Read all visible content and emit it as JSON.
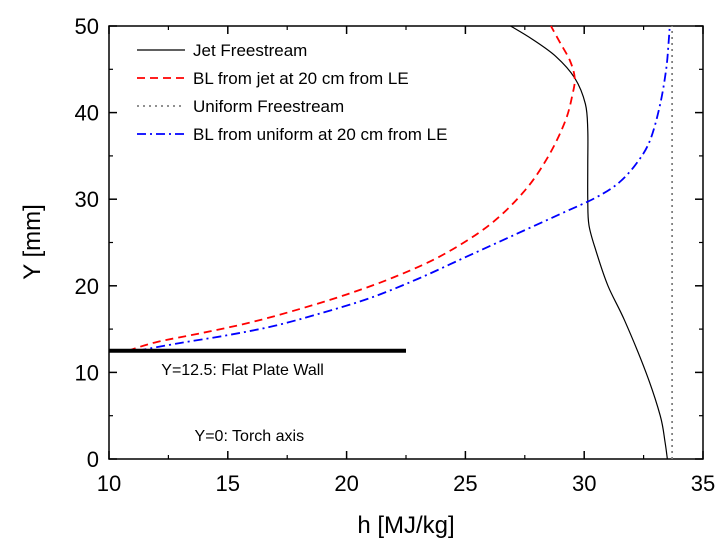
{
  "chart_data": {
    "type": "line",
    "xlabel": "h [MJ/kg]",
    "ylabel": "Y [mm]",
    "xlim": [
      10,
      35
    ],
    "ylim": [
      0,
      50
    ],
    "xticks": [
      "10",
      "15",
      "20",
      "25",
      "30",
      "35"
    ],
    "yticks": [
      "0",
      "10",
      "20",
      "30",
      "40",
      "50"
    ],
    "grid": false,
    "legend_position": "top-left",
    "series": [
      {
        "name": "Jet Freestream",
        "color": "#000000",
        "style": "solid",
        "points": [
          [
            26.9,
            50
          ],
          [
            27.8,
            48.5
          ],
          [
            28.8,
            46.5
          ],
          [
            29.6,
            44
          ],
          [
            30.05,
            41
          ],
          [
            30.15,
            38
          ],
          [
            30.15,
            34
          ],
          [
            30.15,
            30
          ],
          [
            30.2,
            27
          ],
          [
            30.5,
            24
          ],
          [
            31.0,
            20
          ],
          [
            31.7,
            16
          ],
          [
            32.6,
            10
          ],
          [
            33.2,
            5
          ],
          [
            33.4,
            2
          ],
          [
            33.5,
            0
          ]
        ]
      },
      {
        "name": "BL from jet at 20 cm from LE",
        "color": "#ff0000",
        "style": "dashed",
        "points": [
          [
            10.8,
            12.5
          ],
          [
            12,
            13.5
          ],
          [
            14,
            14.6
          ],
          [
            16,
            15.8
          ],
          [
            18,
            17.3
          ],
          [
            20,
            19
          ],
          [
            22,
            21
          ],
          [
            24,
            23.5
          ],
          [
            26,
            27
          ],
          [
            27.5,
            31
          ],
          [
            28.5,
            35
          ],
          [
            29.2,
            39
          ],
          [
            29.5,
            42
          ],
          [
            29.6,
            44
          ],
          [
            29.4,
            46
          ],
          [
            29.0,
            48
          ],
          [
            28.6,
            50
          ]
        ]
      },
      {
        "name": "Uniform Freestream",
        "color": "#808080",
        "style": "dotted",
        "points": [
          [
            33.7,
            0
          ],
          [
            33.7,
            50
          ]
        ]
      },
      {
        "name": "BL from uniform at 20 cm from LE",
        "color": "#0000ff",
        "style": "dashdot",
        "points": [
          [
            11.2,
            12.5
          ],
          [
            13,
            13.4
          ],
          [
            15,
            14.3
          ],
          [
            17,
            15.4
          ],
          [
            19,
            16.9
          ],
          [
            21,
            18.6
          ],
          [
            23,
            20.8
          ],
          [
            25,
            23.3
          ],
          [
            27,
            25.8
          ],
          [
            29,
            28.3
          ],
          [
            30.5,
            30.2
          ],
          [
            31.5,
            32
          ],
          [
            32.3,
            34.5
          ],
          [
            32.8,
            37
          ],
          [
            33.2,
            41
          ],
          [
            33.45,
            45
          ],
          [
            33.55,
            48
          ],
          [
            33.6,
            50
          ]
        ]
      }
    ],
    "wall": {
      "y": 12.5,
      "x": [
        10,
        22.5
      ]
    },
    "annotations": [
      {
        "text": "Y=12.5: Flat Plate Wall",
        "x": 12.2,
        "y": 9.7
      },
      {
        "text": "Y=0: Torch axis",
        "x": 13.6,
        "y": 2.1
      }
    ]
  }
}
